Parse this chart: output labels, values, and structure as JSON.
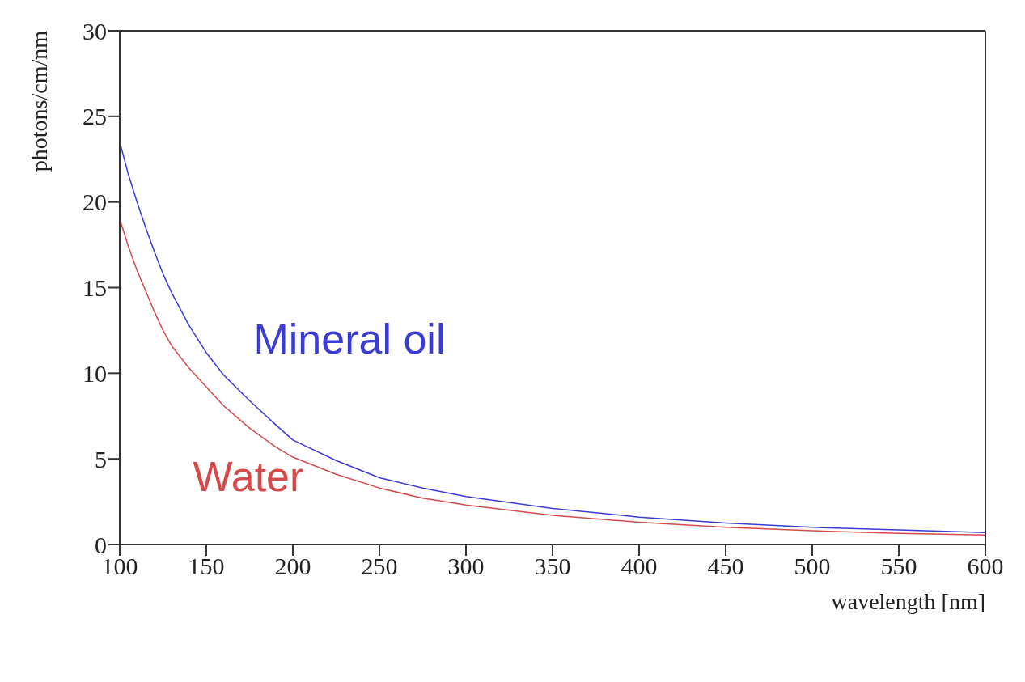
{
  "chart_data": {
    "type": "line",
    "xlabel": "wavelength [nm]",
    "ylabel": "photons/cm/nm",
    "x": [
      100,
      105,
      110,
      115,
      120,
      125,
      130,
      140,
      150,
      160,
      175,
      190,
      200,
      225,
      250,
      275,
      300,
      350,
      400,
      450,
      500,
      550,
      600
    ],
    "series": [
      {
        "name": "Mineral oil",
        "color": "#3b3bd6",
        "values": [
          23.5,
          21.6,
          20,
          18.5,
          17.1,
          15.8,
          14.7,
          12.8,
          11.2,
          9.9,
          8.4,
          7.0,
          6.1,
          4.9,
          3.9,
          3.3,
          2.8,
          2.1,
          1.6,
          1.25,
          1.0,
          0.85,
          0.7
        ]
      },
      {
        "name": "Water",
        "color": "#d64a4a",
        "values": [
          19,
          17.4,
          16,
          14.8,
          13.6,
          12.5,
          11.6,
          10.3,
          9.2,
          8.1,
          6.8,
          5.7,
          5.1,
          4.1,
          3.3,
          2.7,
          2.3,
          1.7,
          1.3,
          1.0,
          0.8,
          0.65,
          0.55
        ]
      }
    ],
    "xlim": [
      100,
      600
    ],
    "xticks": [
      100,
      150,
      200,
      250,
      300,
      350,
      400,
      450,
      500,
      550,
      600
    ],
    "ylim": [
      0,
      30
    ],
    "yticks": [
      0,
      5,
      10,
      15,
      20,
      25,
      30
    ],
    "marker": "none",
    "line_style": "solid"
  }
}
